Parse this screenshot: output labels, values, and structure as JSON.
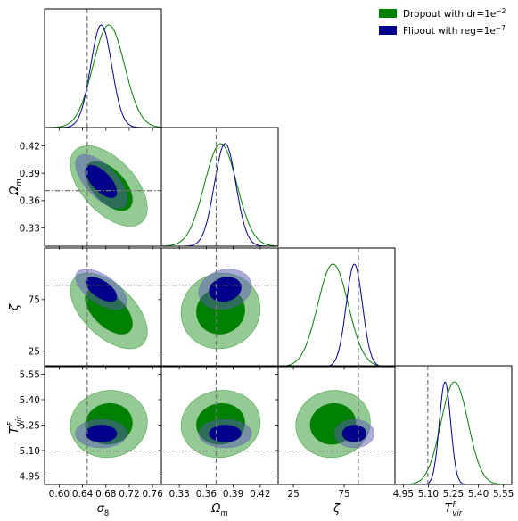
{
  "chart_data": {
    "type": "corner",
    "legend": {
      "position": "top-right",
      "entries": [
        {
          "label": "Dropout with dr=1e",
          "sup": "−2",
          "color": "#008000"
        },
        {
          "label": "Flipout with reg=1e",
          "sup": "−7",
          "color": "#00008b"
        }
      ]
    },
    "parameters": [
      {
        "symbol": "σ",
        "sub": "8",
        "range": [
          0.575,
          0.775
        ],
        "ticks": [
          "0.60",
          "0.64",
          "0.68",
          "0.72",
          "0.76"
        ],
        "tick_values": [
          0.6,
          0.64,
          0.68,
          0.72,
          0.76
        ],
        "truth": 0.648
      },
      {
        "symbol": "Ω",
        "sub": "m",
        "range": [
          0.31,
          0.44
        ],
        "ticks": [
          "0.33",
          "0.36",
          "0.39",
          "0.42"
        ],
        "tick_values": [
          0.33,
          0.36,
          0.39,
          0.42
        ],
        "truth": 0.371
      },
      {
        "symbol": "ζ",
        "sub": "",
        "range": [
          10,
          125
        ],
        "ticks": [
          "25",
          "75"
        ],
        "tick_values": [
          25,
          75
        ],
        "truth": 89
      },
      {
        "symbol": "T",
        "sub": "vir",
        "sup": "F",
        "range": [
          4.9,
          5.6
        ],
        "ticks": [
          "4.95",
          "5.10",
          "5.25",
          "5.40",
          "5.55"
        ],
        "tick_values": [
          4.95,
          5.1,
          5.25,
          5.4,
          5.55
        ],
        "truth": 5.097
      }
    ],
    "posteriors": [
      {
        "name": "Dropout with dr=1e−2",
        "color": "#008000",
        "fill": "#008000",
        "mean": [
          0.685,
          0.376,
          64,
          5.257
        ],
        "sigma": [
          0.027,
          0.018,
          15,
          0.081
        ],
        "corr": [
          [
            1,
            -0.55,
            -0.55,
            0.05
          ],
          [
            -0.55,
            1,
            0.05,
            0.05
          ],
          [
            -0.55,
            0.05,
            1,
            0.05
          ],
          [
            0.05,
            0.05,
            0.05,
            1
          ]
        ]
      },
      {
        "name": "Flipout with reg=1e−7",
        "color": "#00008b",
        "fill": "#5a5ab4",
        "mean": [
          0.672,
          0.381,
          85,
          5.2
        ],
        "sigma": [
          0.018,
          0.012,
          8,
          0.034
        ],
        "corr": [
          [
            1,
            -0.65,
            -0.6,
            0
          ],
          [
            -0.65,
            1,
            0.15,
            0
          ],
          [
            -0.6,
            0.15,
            1,
            0
          ],
          [
            0,
            0,
            0,
            1
          ]
        ]
      }
    ]
  }
}
